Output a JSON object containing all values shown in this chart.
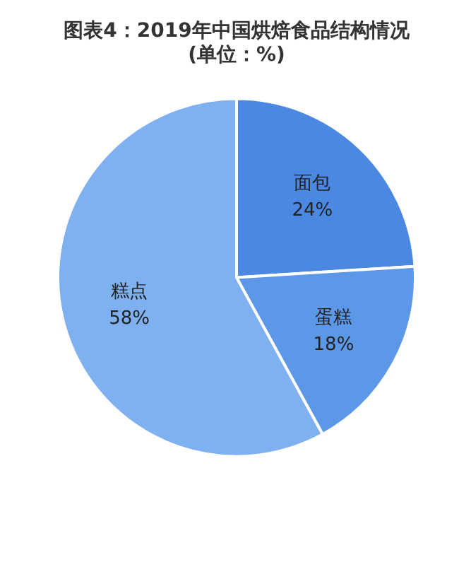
{
  "chart_data": {
    "type": "pie",
    "title": "图表4：2019年中国烘焙食品结构情况\n(单位：%)",
    "categories": [
      "面包",
      "蛋糕",
      "糕点"
    ],
    "values": [
      24,
      18,
      58
    ],
    "colors": [
      "#4a88e2",
      "#5d97e8",
      "#7fb0f0"
    ],
    "value_labels": [
      "24%",
      "18%",
      "58%"
    ],
    "legend": false
  }
}
